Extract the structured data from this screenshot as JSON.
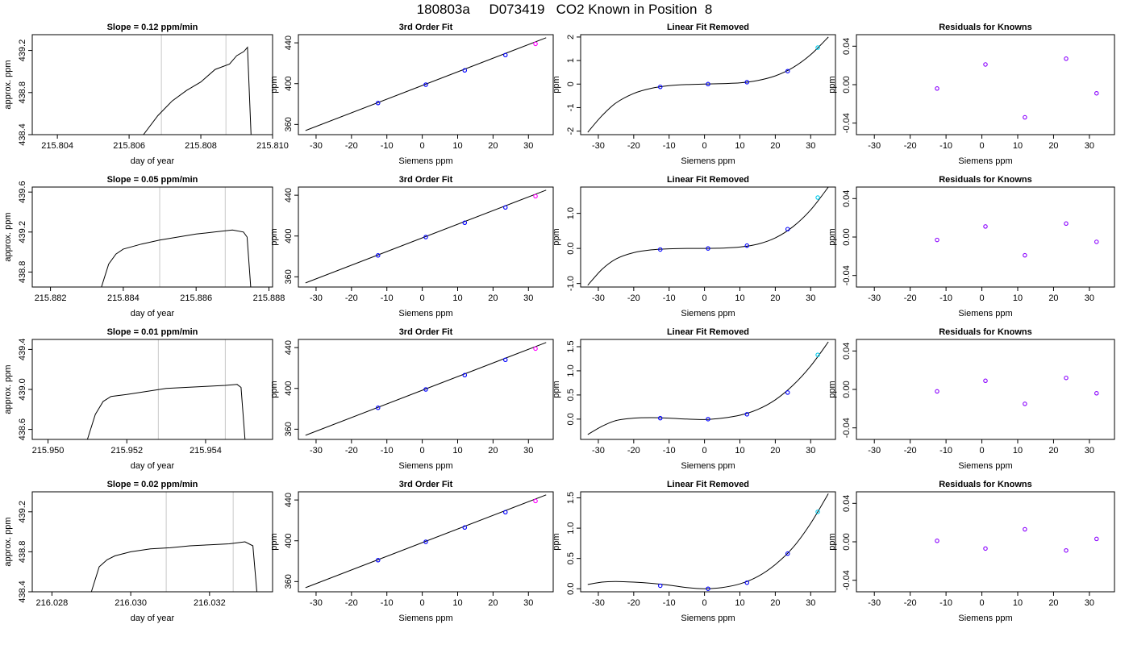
{
  "title": "180803a     D073419   CO2 Known in Position  8",
  "colors": {
    "axes": "#000000",
    "line": "#000000",
    "point": "#0000ff",
    "point_alt": "#ff00ff",
    "point_hi": "#00ccee",
    "residual": "#8a00ff",
    "vline": "#c8c8c8"
  },
  "chart_data": [
    {
      "type": "line",
      "title": "Slope =  0.12  ppm/min",
      "xlabel": "day of year",
      "ylabel": "approx. ppm",
      "xlim": [
        215.8033,
        215.81
      ],
      "ylim": [
        438.4,
        439.35
      ],
      "xticks": [
        "215.804",
        "215.806",
        "215.808",
        "215.810"
      ],
      "yticks": [
        "438.4",
        "438.8",
        "439.2"
      ],
      "vlines": [
        215.8069,
        215.8087
      ],
      "series": [
        {
          "x": [
            215.8064,
            215.8068,
            215.8072,
            215.8076,
            215.808,
            215.8084,
            215.8088,
            215.809,
            215.8092,
            215.8093,
            215.8094
          ],
          "y": [
            438.4,
            438.58,
            438.72,
            438.82,
            438.9,
            439.02,
            439.07,
            439.15,
            439.19,
            439.23,
            438.4
          ]
        }
      ]
    },
    {
      "type": "scatter",
      "title": "3rd Order Fit",
      "xlabel": "Siemens ppm",
      "ylabel": "ppm",
      "xlim": [
        -35,
        37
      ],
      "ylim": [
        350,
        448
      ],
      "xticks": [
        "-30",
        "-20",
        "-10",
        "0",
        "10",
        "20",
        "30"
      ],
      "yticks": [
        "360",
        "400",
        "440"
      ],
      "points": [
        {
          "x": -12.5,
          "y": 381
        },
        {
          "x": 1,
          "y": 399
        },
        {
          "x": 12,
          "y": 413
        },
        {
          "x": 23.5,
          "y": 428
        },
        {
          "x": 32,
          "y": 439
        }
      ],
      "fit": {
        "x": [
          -33,
          35
        ],
        "y": [
          354,
          445
        ]
      }
    },
    {
      "type": "scatter",
      "title": "Linear Fit Removed",
      "xlabel": "Siemens ppm",
      "ylabel": "ppm",
      "xlim": [
        -35,
        37
      ],
      "ylim": [
        -2.15,
        2.1
      ],
      "xticks": [
        "-30",
        "-20",
        "-10",
        "0",
        "10",
        "20",
        "30"
      ],
      "yticks": [
        "-2",
        "-1",
        "0",
        "1",
        "2"
      ],
      "points": [
        {
          "x": -12.5,
          "y": -0.12
        },
        {
          "x": 1,
          "y": 0
        },
        {
          "x": 12,
          "y": 0.08
        },
        {
          "x": 23.5,
          "y": 0.55
        },
        {
          "x": 32,
          "y": 1.55
        }
      ],
      "fit": {
        "x": [
          -33,
          -29,
          -25,
          -20,
          -15,
          -10,
          -5,
          0,
          5,
          10,
          15,
          20,
          25,
          30,
          35
        ],
        "y": [
          -2.05,
          -1.35,
          -0.8,
          -0.4,
          -0.18,
          -0.07,
          -0.02,
          0,
          0.02,
          0.05,
          0.15,
          0.35,
          0.7,
          1.25,
          2.0
        ]
      }
    },
    {
      "type": "scatter",
      "title": "Residuals for Knowns",
      "xlabel": "Siemens ppm",
      "ylabel": "ppm",
      "xlim": [
        -35,
        37
      ],
      "ylim": [
        -0.052,
        0.052
      ],
      "xticks": [
        "-30",
        "-20",
        "-10",
        "0",
        "10",
        "20",
        "30"
      ],
      "yticks": [
        "-0.04",
        "0.00",
        "0.04"
      ],
      "points": [
        {
          "x": -12.5,
          "y": -0.004
        },
        {
          "x": 1,
          "y": 0.021
        },
        {
          "x": 12,
          "y": -0.034
        },
        {
          "x": 23.5,
          "y": 0.027
        },
        {
          "x": 32,
          "y": -0.009
        }
      ]
    },
    {
      "type": "line",
      "title": "Slope =  0.05  ppm/min",
      "xlabel": "day of year",
      "ylabel": "approx. ppm",
      "xlim": [
        215.8815,
        215.8881
      ],
      "ylim": [
        438.65,
        439.65
      ],
      "xticks": [
        "215.882",
        "215.884",
        "215.886",
        "215.888"
      ],
      "yticks": [
        "438.8",
        "439.2",
        "439.6"
      ],
      "vlines": [
        215.885,
        215.8868
      ],
      "series": [
        {
          "x": [
            215.8834,
            215.8836,
            215.8838,
            215.884,
            215.8845,
            215.885,
            215.8855,
            215.886,
            215.8865,
            215.887,
            215.8873,
            215.8874,
            215.8875
          ],
          "y": [
            438.65,
            438.88,
            438.98,
            439.03,
            439.08,
            439.12,
            439.15,
            439.18,
            439.2,
            439.22,
            439.2,
            439.15,
            438.65
          ]
        }
      ]
    },
    {
      "type": "scatter",
      "title": "3rd Order Fit",
      "xlabel": "Siemens ppm",
      "ylabel": "ppm",
      "xlim": [
        -35,
        37
      ],
      "ylim": [
        350,
        448
      ],
      "xticks": [
        "-30",
        "-20",
        "-10",
        "0",
        "10",
        "20",
        "30"
      ],
      "yticks": [
        "360",
        "400",
        "440"
      ],
      "points": [
        {
          "x": -12.5,
          "y": 381
        },
        {
          "x": 1,
          "y": 399
        },
        {
          "x": 12,
          "y": 413
        },
        {
          "x": 23.5,
          "y": 428
        },
        {
          "x": 32,
          "y": 439
        }
      ],
      "fit": {
        "x": [
          -33,
          35
        ],
        "y": [
          354,
          445
        ]
      }
    },
    {
      "type": "scatter",
      "title": "Linear Fit Removed",
      "xlabel": "Siemens ppm",
      "ylabel": "ppm",
      "xlim": [
        -35,
        37
      ],
      "ylim": [
        -1.1,
        1.75
      ],
      "xticks": [
        "-30",
        "-20",
        "-10",
        "0",
        "10",
        "20",
        "30"
      ],
      "yticks": [
        "-1.0",
        "0.0",
        "1.0"
      ],
      "points": [
        {
          "x": -12.5,
          "y": -0.03
        },
        {
          "x": 1,
          "y": 0
        },
        {
          "x": 12,
          "y": 0.08
        },
        {
          "x": 23.5,
          "y": 0.55
        },
        {
          "x": 32,
          "y": 1.45
        }
      ],
      "fit": {
        "x": [
          -33,
          -29,
          -25,
          -20,
          -15,
          -10,
          -5,
          0,
          5,
          10,
          15,
          20,
          25,
          30,
          35
        ],
        "y": [
          -1.05,
          -0.6,
          -0.3,
          -0.12,
          -0.04,
          -0.01,
          0,
          0,
          0.01,
          0.04,
          0.12,
          0.3,
          0.62,
          1.1,
          1.75
        ]
      }
    },
    {
      "type": "scatter",
      "title": "Residuals for Knowns",
      "xlabel": "Siemens ppm",
      "ylabel": "ppm",
      "xlim": [
        -35,
        37
      ],
      "ylim": [
        -0.052,
        0.052
      ],
      "xticks": [
        "-30",
        "-20",
        "-10",
        "0",
        "10",
        "20",
        "30"
      ],
      "yticks": [
        "-0.04",
        "0.00",
        "0.04"
      ],
      "points": [
        {
          "x": -12.5,
          "y": -0.003
        },
        {
          "x": 1,
          "y": 0.011
        },
        {
          "x": 12,
          "y": -0.019
        },
        {
          "x": 23.5,
          "y": 0.014
        },
        {
          "x": 32,
          "y": -0.005
        }
      ]
    },
    {
      "type": "line",
      "title": "Slope =  0.01  ppm/min",
      "xlabel": "day of year",
      "ylabel": "approx. ppm",
      "xlim": [
        215.9496,
        215.9557
      ],
      "ylim": [
        438.5,
        439.5
      ],
      "xticks": [
        "215.950",
        "215.952",
        "215.954"
      ],
      "yticks": [
        "438.6",
        "439.0",
        "439.4"
      ],
      "vlines": [
        215.9528,
        215.9545
      ],
      "series": [
        {
          "x": [
            215.951,
            215.9512,
            215.9514,
            215.9516,
            215.952,
            215.9525,
            215.953,
            215.9535,
            215.954,
            215.9545,
            215.9548,
            215.9549,
            215.955
          ],
          "y": [
            438.5,
            438.75,
            438.88,
            438.93,
            438.95,
            438.98,
            439.01,
            439.02,
            439.03,
            439.04,
            439.05,
            439.02,
            438.5
          ]
        }
      ]
    },
    {
      "type": "scatter",
      "title": "3rd Order Fit",
      "xlabel": "Siemens ppm",
      "ylabel": "ppm",
      "xlim": [
        -35,
        37
      ],
      "ylim": [
        350,
        448
      ],
      "xticks": [
        "-30",
        "-20",
        "-10",
        "0",
        "10",
        "20",
        "30"
      ],
      "yticks": [
        "360",
        "400",
        "440"
      ],
      "points": [
        {
          "x": -12.5,
          "y": 381
        },
        {
          "x": 1,
          "y": 399
        },
        {
          "x": 12,
          "y": 413
        },
        {
          "x": 23.5,
          "y": 428
        },
        {
          "x": 32,
          "y": 439
        }
      ],
      "fit": {
        "x": [
          -33,
          35
        ],
        "y": [
          354,
          445
        ]
      }
    },
    {
      "type": "scatter",
      "title": "Linear Fit Removed",
      "xlabel": "Siemens ppm",
      "ylabel": "ppm",
      "xlim": [
        -35,
        37
      ],
      "ylim": [
        -0.42,
        1.65
      ],
      "xticks": [
        "-30",
        "-20",
        "-10",
        "0",
        "10",
        "20",
        "30"
      ],
      "yticks": [
        "0.0",
        "0.5",
        "1.0",
        "1.5"
      ],
      "points": [
        {
          "x": -12.5,
          "y": 0.02
        },
        {
          "x": 1,
          "y": 0
        },
        {
          "x": 12,
          "y": 0.1
        },
        {
          "x": 23.5,
          "y": 0.55
        },
        {
          "x": 32,
          "y": 1.33
        }
      ],
      "fit": {
        "x": [
          -33,
          -29,
          -25,
          -20,
          -15,
          -10,
          -5,
          0,
          5,
          10,
          15,
          20,
          25,
          30,
          35
        ],
        "y": [
          -0.32,
          -0.15,
          -0.03,
          0.02,
          0.03,
          0.02,
          0,
          -0.01,
          0.02,
          0.08,
          0.2,
          0.4,
          0.7,
          1.1,
          1.6
        ]
      }
    },
    {
      "type": "scatter",
      "title": "Residuals for Knowns",
      "xlabel": "Siemens ppm",
      "ylabel": "ppm",
      "xlim": [
        -35,
        37
      ],
      "ylim": [
        -0.052,
        0.052
      ],
      "xticks": [
        "-30",
        "-20",
        "-10",
        "0",
        "10",
        "20",
        "30"
      ],
      "yticks": [
        "-0.04",
        "0.00",
        "0.04"
      ],
      "points": [
        {
          "x": -12.5,
          "y": -0.002
        },
        {
          "x": 1,
          "y": 0.009
        },
        {
          "x": 12,
          "y": -0.015
        },
        {
          "x": 23.5,
          "y": 0.012
        },
        {
          "x": 32,
          "y": -0.004
        }
      ]
    },
    {
      "type": "line",
      "title": "Slope =  0.02  ppm/min",
      "xlabel": "day of year",
      "ylabel": "approx. ppm",
      "xlim": [
        216.0275,
        216.0336
      ],
      "ylim": [
        438.4,
        439.4
      ],
      "xticks": [
        "216.028",
        "216.030",
        "216.032"
      ],
      "yticks": [
        "438.4",
        "438.8",
        "439.2"
      ],
      "vlines": [
        216.0309,
        216.0326
      ],
      "series": [
        {
          "x": [
            216.029,
            216.0292,
            216.0294,
            216.0296,
            216.03,
            216.0305,
            216.031,
            216.0315,
            216.032,
            216.0325,
            216.0329,
            216.0331,
            216.0332
          ],
          "y": [
            438.4,
            438.65,
            438.72,
            438.76,
            438.8,
            438.83,
            438.84,
            438.86,
            438.87,
            438.88,
            438.9,
            438.86,
            438.4
          ]
        }
      ]
    },
    {
      "type": "scatter",
      "title": "3rd Order Fit",
      "xlabel": "Siemens ppm",
      "ylabel": "ppm",
      "xlim": [
        -35,
        37
      ],
      "ylim": [
        350,
        448
      ],
      "xticks": [
        "-30",
        "-20",
        "-10",
        "0",
        "10",
        "20",
        "30"
      ],
      "yticks": [
        "360",
        "400",
        "440"
      ],
      "points": [
        {
          "x": -12.5,
          "y": 381
        },
        {
          "x": 1,
          "y": 399
        },
        {
          "x": 12,
          "y": 413
        },
        {
          "x": 23.5,
          "y": 428
        },
        {
          "x": 32,
          "y": 439
        }
      ],
      "fit": {
        "x": [
          -33,
          35
        ],
        "y": [
          354,
          445
        ]
      }
    },
    {
      "type": "scatter",
      "title": "Linear Fit Removed",
      "xlabel": "Siemens ppm",
      "ylabel": "ppm",
      "xlim": [
        -35,
        37
      ],
      "ylim": [
        -0.05,
        1.6
      ],
      "xticks": [
        "-30",
        "-20",
        "-10",
        "0",
        "10",
        "20",
        "30"
      ],
      "yticks": [
        "0.0",
        "0.5",
        "1.0",
        "1.5"
      ],
      "points": [
        {
          "x": -12.5,
          "y": 0.05
        },
        {
          "x": 1,
          "y": 0
        },
        {
          "x": 12,
          "y": 0.1
        },
        {
          "x": 23.5,
          "y": 0.58
        },
        {
          "x": 32,
          "y": 1.27
        }
      ],
      "fit": {
        "x": [
          -33,
          -29,
          -25,
          -20,
          -15,
          -10,
          -5,
          0,
          5,
          10,
          15,
          20,
          25,
          30,
          35
        ],
        "y": [
          0.07,
          0.11,
          0.12,
          0.11,
          0.09,
          0.06,
          0.02,
          0,
          0.02,
          0.08,
          0.2,
          0.4,
          0.68,
          1.08,
          1.57
        ]
      }
    },
    {
      "type": "scatter",
      "title": "Residuals for Knowns",
      "xlabel": "Siemens ppm",
      "ylabel": "ppm",
      "xlim": [
        -35,
        37
      ],
      "ylim": [
        -0.052,
        0.052
      ],
      "xticks": [
        "-30",
        "-20",
        "-10",
        "0",
        "10",
        "20",
        "30"
      ],
      "yticks": [
        "-0.04",
        "0.00",
        "0.04"
      ],
      "points": [
        {
          "x": -12.5,
          "y": 0.001
        },
        {
          "x": 1,
          "y": -0.007
        },
        {
          "x": 12,
          "y": 0.013
        },
        {
          "x": 23.5,
          "y": -0.009
        },
        {
          "x": 32,
          "y": 0.003
        }
      ]
    }
  ]
}
